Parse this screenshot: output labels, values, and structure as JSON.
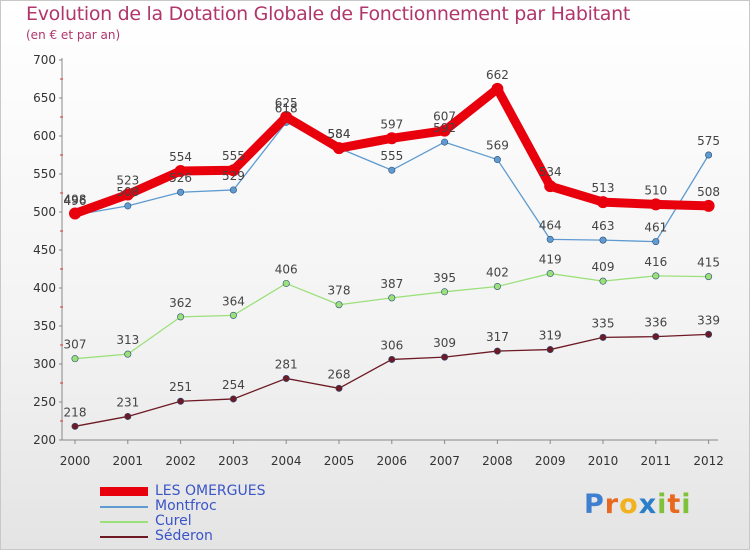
{
  "chart_data": {
    "type": "line",
    "title": "Evolution de la Dotation Globale de Fonctionnement par Habitant",
    "subtitle": "(en € et par an)",
    "x": [
      "2000",
      "2001",
      "2002",
      "2003",
      "2004",
      "2005",
      "2006",
      "2007",
      "2008",
      "2009",
      "2010",
      "2011",
      "2012"
    ],
    "ylim": [
      200,
      700
    ],
    "yticks": [
      200,
      250,
      300,
      350,
      400,
      450,
      500,
      550,
      600,
      650,
      700
    ],
    "grid": false,
    "legend_position": "bottom-left",
    "series": [
      {
        "name": "LES OMERGUES",
        "color": "#e8000d",
        "values": [
          498,
          523,
          554,
          555,
          625,
          584,
          597,
          607,
          662,
          534,
          513,
          510,
          508
        ]
      },
      {
        "name": "Montfroc",
        "color": "#5f9bd0",
        "values": [
          496,
          508,
          526,
          529,
          618,
          584,
          555,
          592,
          569,
          464,
          463,
          461,
          575
        ]
      },
      {
        "name": "Curel",
        "color": "#9ce07a",
        "values": [
          307,
          313,
          362,
          364,
          406,
          378,
          387,
          395,
          402,
          419,
          409,
          416,
          415
        ]
      },
      {
        "name": "Séderon",
        "color": "#6e1a24",
        "values": [
          218,
          231,
          251,
          254,
          281,
          268,
          306,
          309,
          317,
          319,
          335,
          336,
          339
        ]
      }
    ]
  },
  "brand": {
    "name": "Proxiti",
    "letters": [
      "P",
      "r",
      "o",
      "x",
      "i",
      "t",
      "i"
    ],
    "colors": [
      "#3f7fd0",
      "#e8681f",
      "#f2b21f",
      "#2a7fc8",
      "#7fc23a",
      "#e8681f",
      "#7fc23a"
    ]
  }
}
